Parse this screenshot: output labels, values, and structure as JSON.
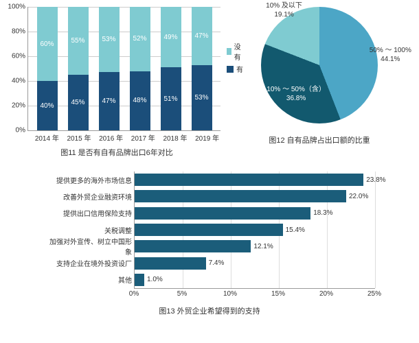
{
  "stacked": {
    "type": "stacked-bar",
    "ylim": [
      0,
      100
    ],
    "ytick_step": 20,
    "categories": [
      "2014 年",
      "2015 年",
      "2016 年",
      "2017 年",
      "2018 年",
      "2019 年"
    ],
    "series": [
      {
        "name": "没有",
        "color": "#7fcbd1",
        "values": [
          60,
          55,
          53,
          52,
          49,
          47
        ]
      },
      {
        "name": "有",
        "color": "#1b4e7a",
        "values": [
          40,
          45,
          47,
          48,
          51,
          53
        ]
      }
    ],
    "caption": "图11  是否有自有品牌出口6年对比",
    "grid_color": "#cccccc",
    "axis_color": "#999999",
    "background": "#ffffff"
  },
  "pie": {
    "type": "pie",
    "slices": [
      {
        "label": "50% ～ 100%",
        "value": 44.1,
        "color": "#4ca6c6",
        "label_outside": true
      },
      {
        "label": "10% ～ 50%（含）",
        "value": 36.8,
        "color": "#12596e",
        "label_outside": false
      },
      {
        "label": "10%  及以下",
        "value": 19.1,
        "color": "#7fcbd1",
        "label_outside": true
      }
    ],
    "caption": "图12  自有品牌占出口额的比重",
    "background": "#ffffff"
  },
  "hbar": {
    "type": "bar-horizontal",
    "xlim": [
      0,
      25
    ],
    "xtick_step": 5,
    "bar_color": "#1b5d7a",
    "items": [
      {
        "label": "提供更多的海外市场信息",
        "value": 23.8
      },
      {
        "label": "改善外贸企业融资环境",
        "value": 22.0
      },
      {
        "label": "提供出口信用保险支持",
        "value": 18.3
      },
      {
        "label": "关税调整",
        "value": 15.4
      },
      {
        "label": "加强对外宣传、树立中国形象",
        "value": 12.1
      },
      {
        "label": "支持企业在境外投资设厂",
        "value": 7.4
      },
      {
        "label": "其他",
        "value": 1.0
      }
    ],
    "caption": "图13  外贸企业希望得到的支持",
    "grid_color": "#dddddd",
    "axis_color": "#999999"
  }
}
